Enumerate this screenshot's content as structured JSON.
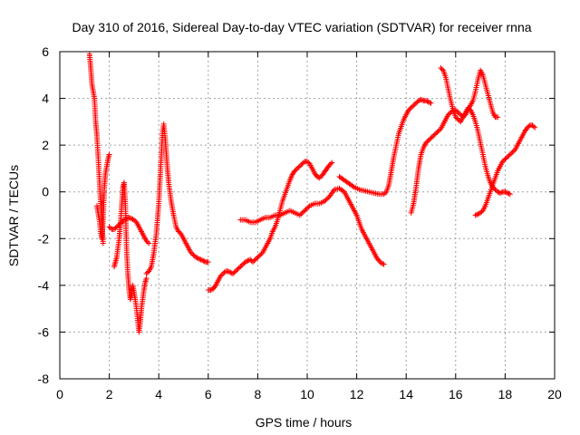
{
  "chart_data": {
    "type": "scatter",
    "title": "Day 310 of 2016, Sidereal Day-to-day VTEC variation (SDTVAR) for receiver rnna",
    "xlabel": "GPS time / hours",
    "ylabel": "SDTVAR / TECUs",
    "xlim": [
      0,
      20
    ],
    "ylim": [
      -8,
      6
    ],
    "xticks": [
      0,
      2,
      4,
      6,
      8,
      10,
      12,
      14,
      16,
      18,
      20
    ],
    "yticks": [
      -8,
      -6,
      -4,
      -2,
      0,
      2,
      4,
      6
    ],
    "grid": true,
    "marker": "+",
    "marker_color": "#ff0000",
    "series": [
      {
        "name": "s1",
        "x": [
          1.2,
          1.25,
          1.3,
          1.35,
          1.4,
          1.45,
          1.5,
          1.55,
          1.6,
          1.65,
          1.7,
          1.75
        ],
        "y": [
          5.9,
          5.3,
          4.6,
          4.3,
          4.0,
          3.0,
          2.4,
          1.5,
          0.5,
          -0.5,
          -1.3,
          -2.2
        ]
      },
      {
        "name": "s2",
        "x": [
          1.5,
          1.55,
          1.6,
          1.65,
          1.7,
          1.75,
          1.8,
          1.85,
          1.9,
          1.95,
          2.0
        ],
        "y": [
          -0.6,
          -0.9,
          -1.2,
          -1.7,
          -2.0,
          -1.2,
          0.2,
          0.8,
          1.1,
          1.4,
          1.6
        ]
      },
      {
        "name": "s3",
        "x": [
          2.0,
          2.1,
          2.2,
          2.3,
          2.4,
          2.5,
          2.6,
          2.7,
          2.8,
          2.9,
          3.0,
          3.1,
          3.2,
          3.3,
          3.4,
          3.5,
          3.6
        ],
        "y": [
          -1.5,
          -1.6,
          -1.6,
          -1.5,
          -1.4,
          -1.3,
          -1.2,
          -1.15,
          -1.1,
          -1.15,
          -1.2,
          -1.3,
          -1.5,
          -1.7,
          -1.9,
          -2.1,
          -2.2
        ]
      },
      {
        "name": "s4",
        "x": [
          2.2,
          2.25,
          2.3,
          2.35,
          2.4,
          2.45,
          2.5,
          2.55,
          2.6,
          2.65,
          2.7,
          2.75,
          2.8,
          2.85,
          2.9,
          2.95,
          3.0,
          3.05,
          3.1,
          3.15,
          3.2,
          3.25,
          3.3,
          3.35,
          3.4,
          3.45,
          3.5
        ],
        "y": [
          -3.2,
          -3.0,
          -2.8,
          -2.4,
          -2.0,
          -1.4,
          -0.6,
          0.2,
          0.4,
          -0.5,
          -2.5,
          -3.5,
          -4.2,
          -4.6,
          -4.4,
          -4.0,
          -4.3,
          -4.6,
          -5.0,
          -5.5,
          -6.0,
          -5.6,
          -5.0,
          -4.6,
          -4.2,
          -3.9,
          -3.7
        ]
      },
      {
        "name": "s5",
        "x": [
          3.5,
          3.6,
          3.7,
          3.8,
          3.9,
          4.0,
          4.05,
          4.1,
          4.15,
          4.2,
          4.25,
          4.3,
          4.35,
          4.4,
          4.5,
          4.6,
          4.7,
          4.8,
          4.9,
          5.0,
          5.1,
          5.2,
          5.3,
          5.4,
          5.5,
          5.6,
          5.7,
          5.8,
          5.9,
          6.0
        ],
        "y": [
          -3.5,
          -3.4,
          -3.2,
          -2.6,
          -1.8,
          -0.5,
          0.5,
          1.5,
          2.5,
          2.9,
          2.4,
          1.7,
          1.0,
          0.4,
          -0.4,
          -1.0,
          -1.5,
          -1.7,
          -1.8,
          -2.0,
          -2.2,
          -2.4,
          -2.6,
          -2.7,
          -2.8,
          -2.85,
          -2.9,
          -2.95,
          -3.0,
          -3.0
        ]
      },
      {
        "name": "s6",
        "x": [
          6.0,
          6.1,
          6.2,
          6.3,
          6.4,
          6.5,
          6.6,
          6.7,
          6.8,
          6.9,
          7.0,
          7.1,
          7.2,
          7.3,
          7.4,
          7.5,
          7.6,
          7.7,
          7.8,
          7.9,
          8.0,
          8.1,
          8.2,
          8.3,
          8.4,
          8.5,
          8.6,
          8.7,
          8.8,
          8.9,
          9.0,
          9.1,
          9.2,
          9.3,
          9.4,
          9.5,
          9.6,
          9.7,
          9.8,
          9.9,
          10.0,
          10.1,
          10.2,
          10.3,
          10.4,
          10.5,
          10.6,
          10.7,
          10.8,
          10.9,
          11.0
        ],
        "y": [
          -4.2,
          -4.2,
          -4.15,
          -4.0,
          -3.8,
          -3.6,
          -3.5,
          -3.4,
          -3.4,
          -3.45,
          -3.5,
          -3.4,
          -3.3,
          -3.2,
          -3.1,
          -3.0,
          -2.95,
          -2.9,
          -3.0,
          -2.9,
          -2.8,
          -2.7,
          -2.6,
          -2.4,
          -2.2,
          -2.0,
          -1.7,
          -1.5,
          -1.2,
          -0.8,
          -0.4,
          -0.1,
          0.2,
          0.5,
          0.75,
          0.9,
          1.0,
          1.1,
          1.2,
          1.3,
          1.3,
          1.2,
          1.0,
          0.8,
          0.65,
          0.6,
          0.7,
          0.85,
          1.0,
          1.15,
          1.25
        ]
      },
      {
        "name": "s7",
        "x": [
          7.3,
          7.5,
          7.7,
          7.9,
          8.1,
          8.3,
          8.5,
          8.7,
          8.9,
          9.1,
          9.3,
          9.5,
          9.7,
          9.9,
          10.1,
          10.3,
          10.5,
          10.7,
          10.9,
          11.1,
          11.3,
          11.5,
          11.7,
          11.8,
          11.9,
          12.0,
          12.1,
          12.2,
          12.3,
          12.4,
          12.5,
          12.6,
          12.7,
          12.8,
          12.9,
          13.0,
          13.1
        ],
        "y": [
          -1.2,
          -1.2,
          -1.3,
          -1.3,
          -1.2,
          -1.1,
          -1.1,
          -1.0,
          -1.0,
          -0.9,
          -0.8,
          -0.9,
          -1.0,
          -0.8,
          -0.6,
          -0.5,
          -0.5,
          -0.4,
          -0.2,
          0.1,
          0.15,
          0.0,
          -0.4,
          -0.6,
          -0.8,
          -1.0,
          -1.3,
          -1.6,
          -1.8,
          -2.0,
          -2.2,
          -2.4,
          -2.6,
          -2.8,
          -2.95,
          -3.05,
          -3.1
        ]
      },
      {
        "name": "s8",
        "x": [
          11.3,
          11.5,
          11.7,
          11.9,
          12.1,
          12.3,
          12.5,
          12.7,
          12.9,
          13.1,
          13.2,
          13.3,
          13.4,
          13.5,
          13.6,
          13.7,
          13.8,
          13.9,
          14.0,
          14.1,
          14.2,
          14.3,
          14.4,
          14.5,
          14.6,
          14.7,
          14.8,
          14.9,
          15.0
        ],
        "y": [
          0.65,
          0.5,
          0.35,
          0.2,
          0.1,
          0.05,
          0.0,
          -0.05,
          -0.1,
          -0.1,
          0.0,
          0.3,
          0.9,
          1.5,
          2.0,
          2.5,
          2.8,
          3.1,
          3.3,
          3.5,
          3.6,
          3.7,
          3.8,
          3.9,
          3.95,
          3.9,
          3.9,
          3.85,
          3.8
        ]
      },
      {
        "name": "s9",
        "x": [
          14.2,
          14.3,
          14.4,
          14.5,
          14.6,
          14.7,
          14.8,
          14.9,
          15.0,
          15.1,
          15.2,
          15.3,
          15.4,
          15.5,
          15.6,
          15.7,
          15.8,
          15.9,
          16.0,
          16.1,
          16.2,
          16.3,
          16.4,
          16.5,
          16.6,
          16.7,
          16.8,
          16.9,
          17.0,
          17.1,
          17.2,
          17.3,
          17.4,
          17.5,
          17.6,
          17.7
        ],
        "y": [
          -0.9,
          -0.5,
          0.2,
          1.0,
          1.6,
          1.9,
          2.1,
          2.2,
          2.3,
          2.4,
          2.5,
          2.6,
          2.7,
          2.9,
          3.1,
          3.3,
          3.4,
          3.5,
          3.5,
          3.4,
          3.3,
          3.2,
          3.3,
          3.5,
          3.7,
          3.9,
          4.3,
          4.8,
          5.2,
          5.0,
          4.6,
          4.2,
          3.8,
          3.4,
          3.2,
          3.2
        ]
      },
      {
        "name": "s10",
        "x": [
          15.4,
          15.5,
          15.6,
          15.7,
          15.8,
          15.9,
          16.0,
          16.1,
          16.2,
          16.3,
          16.4,
          16.5,
          16.6,
          16.7,
          16.8,
          16.9,
          17.0,
          17.1,
          17.2,
          17.3,
          17.4,
          17.5,
          17.6,
          17.7,
          17.8,
          17.9,
          18.0,
          18.1,
          18.2
        ],
        "y": [
          5.3,
          5.2,
          4.9,
          4.4,
          3.9,
          3.5,
          3.2,
          3.1,
          3.0,
          3.2,
          3.4,
          3.6,
          3.5,
          3.3,
          3.0,
          2.6,
          2.1,
          1.6,
          1.1,
          0.7,
          0.4,
          0.2,
          0.1,
          0.0,
          -0.05,
          0.0,
          0.0,
          -0.05,
          -0.1
        ]
      },
      {
        "name": "s11",
        "x": [
          16.8,
          16.9,
          17.0,
          17.1,
          17.2,
          17.3,
          17.4,
          17.5,
          17.6,
          17.7,
          17.8,
          17.9,
          18.0,
          18.1,
          18.2,
          18.3,
          18.4,
          18.5,
          18.6,
          18.7,
          18.8,
          18.9,
          19.0,
          19.1,
          19.2
        ],
        "y": [
          -1.0,
          -0.95,
          -0.9,
          -0.8,
          -0.6,
          -0.3,
          0.0,
          0.3,
          0.6,
          0.9,
          1.1,
          1.3,
          1.4,
          1.5,
          1.6,
          1.7,
          1.8,
          2.0,
          2.2,
          2.4,
          2.6,
          2.75,
          2.85,
          2.85,
          2.75
        ]
      }
    ]
  }
}
